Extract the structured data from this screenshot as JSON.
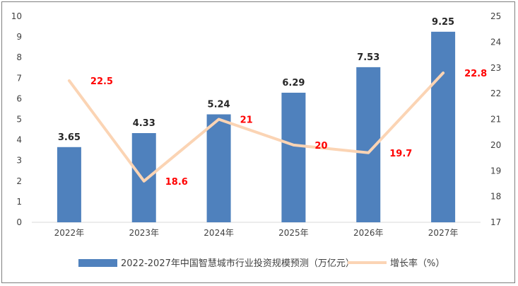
{
  "chart_data": {
    "type": "bar",
    "categories": [
      "2022年",
      "2023年",
      "2024年",
      "2025年",
      "2026年",
      "2027年"
    ],
    "series": [
      {
        "name": "2022-2027年中国智慧城市行业投资规模预测（万亿元）",
        "type": "bar",
        "axis": "left",
        "values": [
          3.65,
          4.33,
          5.24,
          6.29,
          7.53,
          9.25
        ],
        "labels": [
          "3.65",
          "4.33",
          "5.24",
          "6.29",
          "7.53",
          "9.25"
        ]
      },
      {
        "name": "增长率（%）",
        "type": "line",
        "axis": "right",
        "values": [
          22.5,
          18.6,
          21,
          20,
          19.7,
          22.8
        ],
        "labels": [
          "22.5",
          "18.6",
          "21",
          "20",
          "19.7",
          "22.8"
        ]
      }
    ],
    "ylim_left": [
      0,
      10
    ],
    "yticks_left": [
      "0",
      "1",
      "2",
      "3",
      "4",
      "5",
      "6",
      "7",
      "8",
      "9",
      "10"
    ],
    "ylim_right": [
      17,
      25
    ],
    "yticks_right": [
      "17",
      "18",
      "19",
      "20",
      "21",
      "22",
      "23",
      "24",
      "25"
    ],
    "grid": false,
    "legend_position": "bottom",
    "colors": {
      "bar": "#4f81bd",
      "line": "#fbd4b4",
      "line_label": "#ff0000"
    }
  }
}
